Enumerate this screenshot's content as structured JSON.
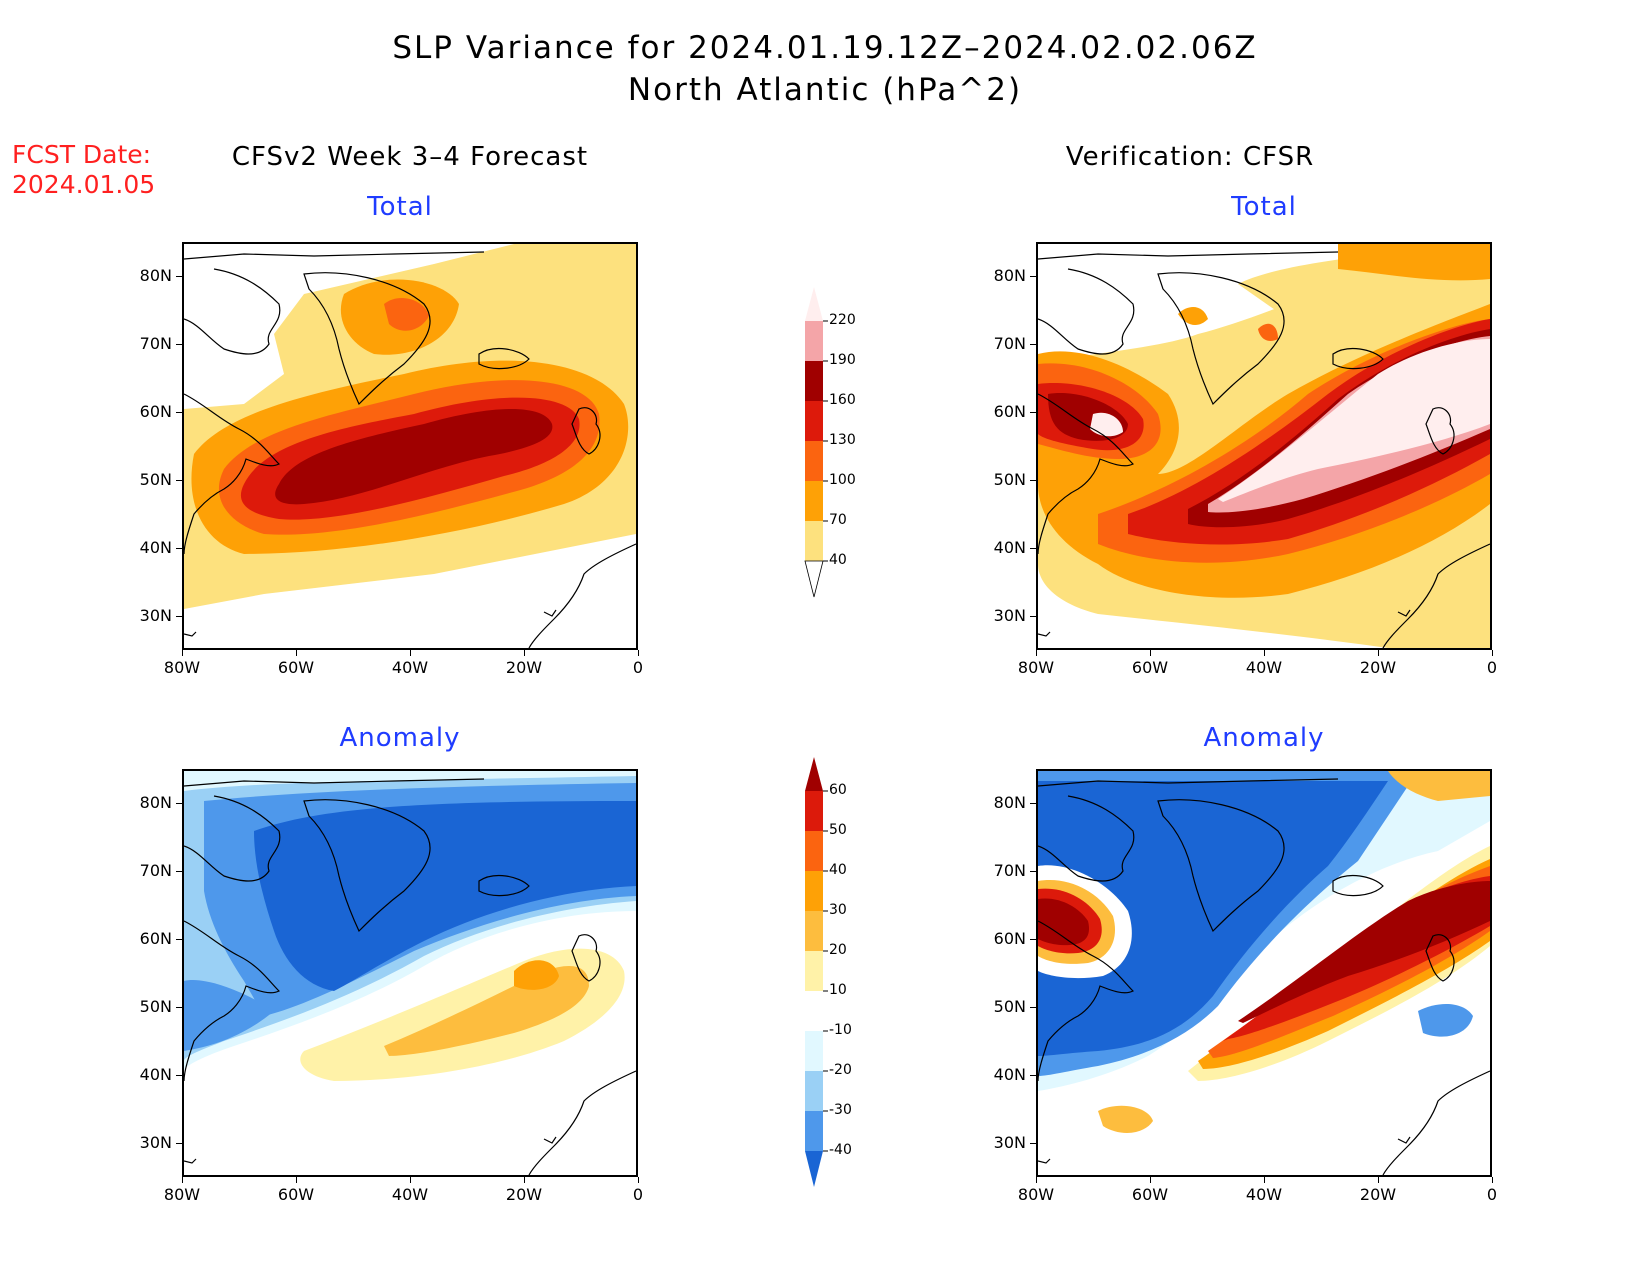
{
  "header": {
    "title_line1": "SLP Variance for 2024.01.19.12Z–2024.02.02.06Z",
    "title_line2": "North Atlantic (hPa^2)",
    "fcst_date_line1": "FCST Date:",
    "fcst_date_line2": "2024.01.05"
  },
  "columns": {
    "left": "CFSv2 Week 3–4 Forecast",
    "right": "Verification: CFSR"
  },
  "panels": {
    "fcst_total": "Total",
    "fcst_anom": "Anomaly",
    "ver_total": "Total",
    "ver_anom": "Anomaly"
  },
  "axes": {
    "lat_ticks": [
      "80N",
      "70N",
      "60N",
      "50N",
      "40N",
      "30N"
    ],
    "lon_ticks": [
      "80W",
      "60W",
      "40W",
      "20W",
      "0"
    ]
  },
  "colorbars": {
    "total": {
      "labels": [
        "220",
        "190",
        "160",
        "130",
        "100",
        "70",
        "40"
      ],
      "colors": [
        "#ffeeee",
        "#f4a5a8",
        "#a00000",
        "#dd1a0b",
        "#fb6410",
        "#fea106",
        "#fde17e",
        "#ffffff"
      ]
    },
    "anomaly": {
      "labels": [
        "60",
        "50",
        "40",
        "30",
        "20",
        "10",
        "-10",
        "-20",
        "-30",
        "-40"
      ],
      "colors": [
        "#a00000",
        "#dc1a0b",
        "#fb6410",
        "#fea106",
        "#fdbd3e",
        "#fff2a8",
        "#ffffff",
        "#e1f8ff",
        "#9ad0f5",
        "#4e98eb",
        "#1a65d4"
      ]
    }
  },
  "map_info": {
    "lat_range": [
      25,
      85
    ],
    "lon_range": [
      -80,
      0
    ]
  }
}
